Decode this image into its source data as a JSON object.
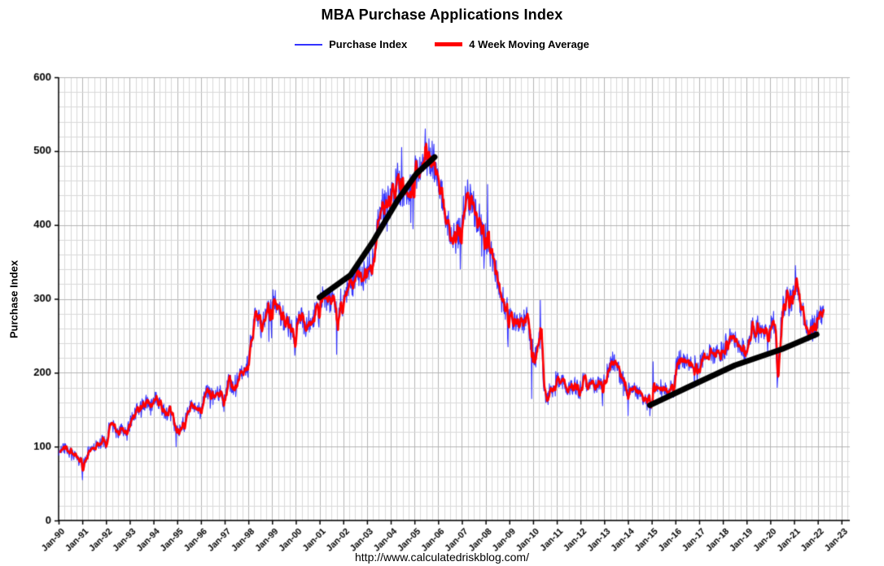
{
  "title": "MBA Purchase Applications Index",
  "legend": {
    "items": [
      {
        "label": "Purchase Index",
        "color": "#3333ff",
        "thickness": 2
      },
      {
        "label": "4 Week Moving Average",
        "color": "#ff0000",
        "thickness": 5
      }
    ]
  },
  "footer_url": "http://www.calculatedriskblog.com/",
  "chart_data": {
    "type": "line",
    "title": "MBA Purchase Applications Index",
    "xlabel": "",
    "ylabel": "Purchase Index",
    "ylim": [
      0,
      600
    ],
    "y_tick_step": 100,
    "y_minor_step": 20,
    "xlim": [
      1990,
      2023.35
    ],
    "x_tick_years": [
      1990,
      1991,
      1992,
      1993,
      1994,
      1995,
      1996,
      1997,
      1998,
      1999,
      2000,
      2001,
      2002,
      2003,
      2004,
      2005,
      2006,
      2007,
      2008,
      2009,
      2010,
      2011,
      2012,
      2013,
      2014,
      2015,
      2016,
      2017,
      2018,
      2019,
      2020,
      2021,
      2022,
      2023
    ],
    "x_tick_labels": [
      "Jan-90",
      "Jan-91",
      "Jan-92",
      "Jan-93",
      "Jan-94",
      "Jan-95",
      "Jan-96",
      "Jan-97",
      "Jan-98",
      "Jan-99",
      "Jan-00",
      "Jan-01",
      "Jan-02",
      "Jan-03",
      "Jan-04",
      "Jan-05",
      "Jan-06",
      "Jan-07",
      "Jan-08",
      "Jan-09",
      "Jan-10",
      "Jan-11",
      "Jan-12",
      "Jan-13",
      "Jan-14",
      "Jan-15",
      "Jan-16",
      "Jan-17",
      "Jan-18",
      "Jan-19",
      "Jan-20",
      "Jan-21",
      "Jan-22",
      "Jan-23"
    ],
    "y_tick_labels": [
      "0",
      "100",
      "200",
      "300",
      "400",
      "500",
      "600"
    ],
    "grid": true,
    "legend_position": "top",
    "series": [
      {
        "name": "Purchase Index",
        "color": "#3333ff",
        "width": 1.1,
        "style": "weekly-noisy"
      },
      {
        "name": "4 Week Moving Average",
        "color": "#ff0000",
        "width": 2.6,
        "style": "4wk-moving-average"
      }
    ],
    "start_year": 1990,
    "monthly_values": [
      [
        92,
        95,
        100,
        98,
        95,
        92,
        90,
        88,
        85,
        82,
        80,
        78
      ],
      [
        78,
        80,
        88,
        95,
        98,
        100,
        102,
        100,
        103,
        106,
        108,
        105
      ],
      [
        112,
        128,
        135,
        128,
        122,
        118,
        120,
        124,
        119,
        116,
        122,
        128
      ],
      [
        135,
        140,
        145,
        150,
        148,
        152,
        155,
        158,
        160,
        162,
        158,
        155
      ],
      [
        165,
        168,
        162,
        158,
        152,
        148,
        145,
        148,
        143,
        138,
        132,
        125
      ],
      [
        120,
        125,
        130,
        135,
        140,
        148,
        152,
        155,
        158,
        155,
        152,
        150
      ],
      [
        160,
        168,
        175,
        172,
        170,
        168,
        165,
        168,
        170,
        172,
        168,
        162
      ],
      [
        178,
        185,
        188,
        185,
        182,
        185,
        190,
        195,
        198,
        200,
        205,
        212
      ],
      [
        235,
        255,
        270,
        280,
        275,
        268,
        262,
        270,
        278,
        285,
        280,
        288
      ],
      [
        300,
        295,
        290,
        285,
        280,
        275,
        270,
        265,
        262,
        258,
        252,
        255
      ],
      [
        265,
        272,
        278,
        270,
        265,
        262,
        268,
        272,
        275,
        280,
        285,
        292
      ],
      [
        300,
        305,
        298,
        295,
        300,
        298,
        295,
        300,
        280,
        285,
        295,
        302
      ],
      [
        310,
        305,
        315,
        320,
        318,
        325,
        330,
        335,
        330,
        325,
        335,
        340
      ],
      [
        340,
        350,
        345,
        360,
        385,
        405,
        420,
        430,
        425,
        435,
        440,
        445
      ],
      [
        450,
        445,
        455,
        460,
        450,
        445,
        440,
        435,
        445,
        450,
        455,
        462
      ],
      [
        470,
        465,
        475,
        480,
        485,
        495,
        490,
        495,
        490,
        488,
        484,
        478
      ],
      [
        460,
        445,
        430,
        418,
        405,
        395,
        388,
        383,
        380,
        384,
        390,
        400
      ],
      [
        415,
        430,
        440,
        438,
        432,
        425,
        420,
        412,
        408,
        404,
        398,
        392
      ],
      [
        380,
        370,
        360,
        355,
        345,
        335,
        320,
        315,
        305,
        295,
        285,
        290
      ],
      [
        275,
        268,
        270,
        265,
        262,
        268,
        264,
        270,
        275,
        268,
        250,
        235
      ],
      [
        220,
        225,
        240,
        258,
        230,
        175,
        168,
        172,
        178,
        182,
        188,
        192
      ],
      [
        190,
        185,
        188,
        192,
        185,
        180,
        182,
        178,
        185,
        180,
        178,
        175
      ],
      [
        185,
        190,
        188,
        185,
        182,
        186,
        184,
        182,
        185,
        188,
        185,
        182
      ],
      [
        195,
        200,
        205,
        210,
        215,
        212,
        208,
        200,
        195,
        190,
        185,
        178
      ],
      [
        175,
        172,
        178,
        175,
        172,
        170,
        168,
        165,
        168,
        170,
        165,
        160
      ],
      [
        162,
        172,
        178,
        182,
        180,
        178,
        176,
        175,
        178,
        182,
        185,
        188
      ],
      [
        208,
        215,
        218,
        216,
        212,
        215,
        210,
        208,
        210,
        212,
        208,
        202
      ],
      [
        212,
        218,
        222,
        225,
        228,
        230,
        226,
        224,
        228,
        230,
        232,
        228
      ],
      [
        235,
        240,
        242,
        245,
        243,
        246,
        242,
        240,
        238,
        236,
        230,
        225
      ],
      [
        242,
        250,
        258,
        262,
        255,
        265,
        258,
        262,
        255,
        260,
        255,
        250
      ],
      [
        265,
        272,
        255,
        190,
        225,
        270,
        290,
        295,
        300,
        298,
        302,
        308
      ],
      [
        315,
        310,
        300,
        290,
        282,
        270,
        262,
        258,
        262,
        268,
        272,
        270
      ],
      [
        272,
        280,
        275
      ]
    ],
    "noise": {
      "seed": 42,
      "base_amp": 4,
      "rel_amp": 0.045
    },
    "spikes": [
      {
        "t": 1991.0,
        "v": 55
      },
      {
        "t": 1994.95,
        "v": 100
      },
      {
        "t": 1999.98,
        "v": 232
      },
      {
        "t": 2001.72,
        "v": 225
      },
      {
        "t": 2004.45,
        "v": 505
      },
      {
        "t": 2005.45,
        "v": 530
      },
      {
        "t": 2008.08,
        "v": 455
      },
      {
        "t": 2008.95,
        "v": 235
      },
      {
        "t": 2009.95,
        "v": 165
      },
      {
        "t": 2010.3,
        "v": 298
      },
      {
        "t": 2013.35,
        "v": 228
      },
      {
        "t": 2014.0,
        "v": 142
      },
      {
        "t": 2015.05,
        "v": 215
      },
      {
        "t": 2020.28,
        "v": 180
      },
      {
        "t": 2021.05,
        "v": 345
      }
    ],
    "annotations": [
      {
        "type": "polyline",
        "color": "#000000",
        "width": 7,
        "points": [
          [
            2001.0,
            302
          ],
          [
            2002.3,
            332
          ],
          [
            2003.3,
            380
          ],
          [
            2004.3,
            434
          ],
          [
            2005.1,
            470
          ],
          [
            2005.85,
            492
          ]
        ]
      },
      {
        "type": "polyline",
        "color": "#000000",
        "width": 7,
        "points": [
          [
            2014.92,
            156
          ],
          [
            2016.5,
            180
          ],
          [
            2018.5,
            210
          ],
          [
            2020.5,
            232
          ],
          [
            2021.95,
            252
          ]
        ]
      }
    ]
  }
}
